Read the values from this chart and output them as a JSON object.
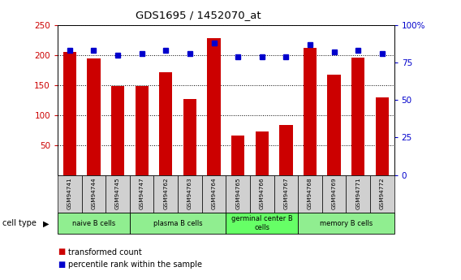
{
  "title": "GDS1695 / 1452070_at",
  "samples": [
    "GSM94741",
    "GSM94744",
    "GSM94745",
    "GSM94747",
    "GSM94762",
    "GSM94763",
    "GSM94764",
    "GSM94765",
    "GSM94766",
    "GSM94767",
    "GSM94768",
    "GSM94769",
    "GSM94771",
    "GSM94772"
  ],
  "transformed_count": [
    205,
    195,
    149,
    149,
    172,
    127,
    228,
    66,
    72,
    83,
    212,
    168,
    196,
    130
  ],
  "percentile_rank": [
    83,
    83,
    80,
    81,
    83,
    81,
    88,
    79,
    79,
    79,
    87,
    82,
    83,
    81
  ],
  "bar_color": "#CC0000",
  "dot_color": "#0000CC",
  "ylim_left": [
    0,
    250
  ],
  "ylim_right": [
    0,
    100
  ],
  "yticks_left": [
    50,
    100,
    150,
    200,
    250
  ],
  "yticks_right": [
    0,
    25,
    50,
    75,
    100
  ],
  "ylabel_left_color": "#CC0000",
  "ylabel_right_color": "#0000CC",
  "group_spans": [
    [
      0,
      3,
      "naive B cells",
      "#90EE90"
    ],
    [
      3,
      7,
      "plasma B cells",
      "#90EE90"
    ],
    [
      7,
      10,
      "germinal center B\ncells",
      "#66FF66"
    ],
    [
      10,
      14,
      "memory B cells",
      "#90EE90"
    ]
  ],
  "legend_items": [
    {
      "label": "transformed count",
      "color": "#CC0000"
    },
    {
      "label": "percentile rank within the sample",
      "color": "#0000CC"
    }
  ]
}
